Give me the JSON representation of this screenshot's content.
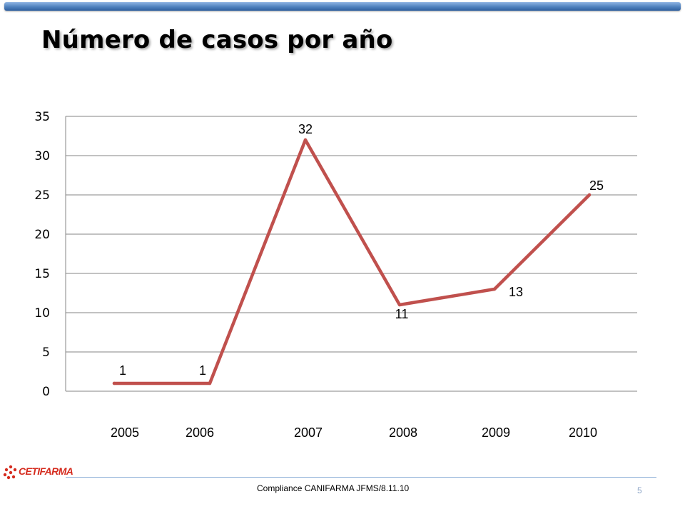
{
  "slide": {
    "title": "Número de casos por año",
    "footer": "Compliance CANIFARMA  JFMS/8.11.10",
    "page_number": "5",
    "logo_text": "CETIFARMA"
  },
  "colors": {
    "line": "#c0504d",
    "grid": "#868686",
    "accent_bar": "#4f81bd",
    "logo": "#d52b1e"
  },
  "chart_data": {
    "type": "line",
    "title": "",
    "xlabel": "",
    "ylabel": "",
    "categories": [
      "2005",
      "2006",
      "2007",
      "2008",
      "2009",
      "2010"
    ],
    "values": [
      1,
      1,
      32,
      11,
      13,
      25
    ],
    "data_labels": [
      "1",
      "1",
      "32",
      "11",
      "13",
      "25"
    ],
    "ylim": [
      0,
      35
    ],
    "y_ticks": [
      "0",
      "5",
      "10",
      "15",
      "20",
      "25",
      "30",
      "35"
    ],
    "grid": true,
    "legend": "none"
  }
}
